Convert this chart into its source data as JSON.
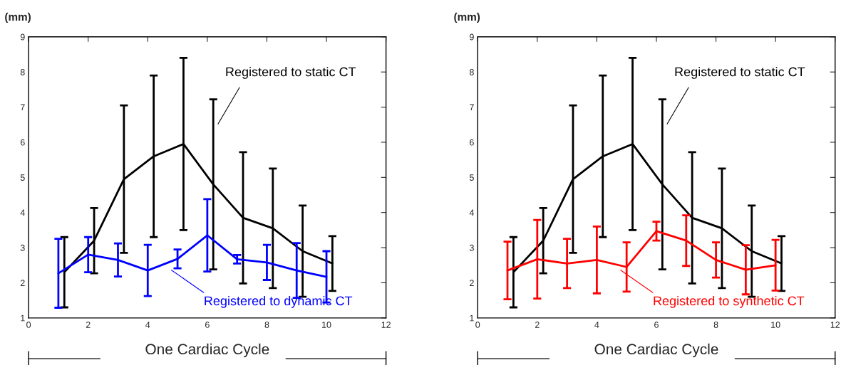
{
  "chart_data": [
    {
      "type": "line",
      "ylabel": "(mm)",
      "xlabel": "One Cardiac Cycle",
      "xlim": [
        0,
        12
      ],
      "xticks": [
        0,
        2,
        4,
        6,
        8,
        10,
        12
      ],
      "ylim": [
        1,
        9
      ],
      "yticks": [
        1,
        2,
        3,
        4,
        5,
        6,
        7,
        8,
        9
      ],
      "grid": false,
      "legend": false,
      "series": [
        {
          "name": "Registered to static CT",
          "color": "#000000",
          "x": [
            1.2,
            2.2,
            3.2,
            4.2,
            5.2,
            6.2,
            7.2,
            8.2,
            9.2,
            10.2
          ],
          "values": [
            2.3,
            3.2,
            4.95,
            5.6,
            5.95,
            4.8,
            3.85,
            3.55,
            2.9,
            2.55
          ],
          "errors": [
            1.0,
            0.93,
            2.1,
            2.3,
            2.45,
            2.42,
            1.87,
            1.7,
            1.3,
            0.78
          ]
        },
        {
          "name": "Registered to dynamic CT",
          "color": "#0000ff",
          "x": [
            1,
            2,
            3,
            4,
            5,
            6,
            7,
            8,
            9,
            10
          ],
          "values": [
            2.27,
            2.8,
            2.65,
            2.35,
            2.68,
            3.35,
            2.67,
            2.58,
            2.35,
            2.17
          ],
          "errors": [
            0.98,
            0.5,
            0.47,
            0.73,
            0.27,
            1.03,
            0.12,
            0.5,
            0.78,
            0.73
          ]
        }
      ]
    },
    {
      "type": "line",
      "ylabel": "(mm)",
      "xlabel": "One Cardiac Cycle",
      "xlim": [
        0,
        12
      ],
      "xticks": [
        0,
        2,
        4,
        6,
        8,
        10,
        12
      ],
      "ylim": [
        1,
        9
      ],
      "yticks": [
        1,
        2,
        3,
        4,
        5,
        6,
        7,
        8,
        9
      ],
      "grid": false,
      "legend": false,
      "series": [
        {
          "name": "Registered to static CT",
          "color": "#000000",
          "x": [
            1.2,
            2.2,
            3.2,
            4.2,
            5.2,
            6.2,
            7.2,
            8.2,
            9.2,
            10.2
          ],
          "values": [
            2.3,
            3.2,
            4.95,
            5.6,
            5.95,
            4.8,
            3.85,
            3.55,
            2.9,
            2.55
          ],
          "errors": [
            1.0,
            0.93,
            2.1,
            2.3,
            2.45,
            2.42,
            1.87,
            1.7,
            1.3,
            0.78
          ]
        },
        {
          "name": "Registered to synthetic CT",
          "color": "#ff0000",
          "x": [
            1,
            2,
            3,
            4,
            5,
            6,
            7,
            8,
            9,
            10
          ],
          "values": [
            2.35,
            2.67,
            2.55,
            2.65,
            2.45,
            3.47,
            3.2,
            2.65,
            2.37,
            2.5
          ],
          "errors": [
            0.82,
            1.12,
            0.7,
            0.95,
            0.7,
            0.27,
            0.72,
            0.5,
            0.7,
            0.72
          ]
        }
      ]
    }
  ]
}
